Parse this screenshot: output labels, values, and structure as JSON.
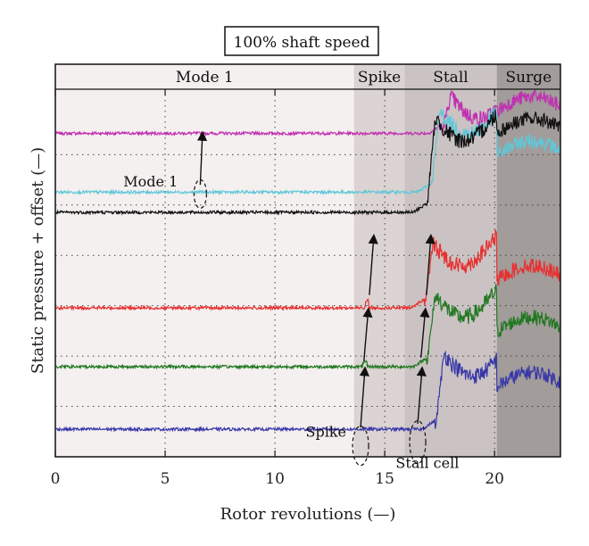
{
  "chart_data": {
    "type": "line",
    "title": "100% shaft speed",
    "xlabel": "Rotor revolutions (—)",
    "ylabel": "Static pressure + offset (—)",
    "xlim": [
      0,
      23
    ],
    "xticks": [
      0,
      5,
      10,
      15,
      20
    ],
    "grid": true,
    "regions": [
      {
        "label": "Mode 1",
        "x_start": 0,
        "x_end": 13.6,
        "color": "#f5f0f0"
      },
      {
        "label": "Spike",
        "x_start": 13.6,
        "x_end": 15.9,
        "color": "#dcd3d3"
      },
      {
        "label": "Stall",
        "x_start": 15.9,
        "x_end": 20.1,
        "color": "#cbc3c3"
      },
      {
        "label": "Surge",
        "x_start": 20.1,
        "x_end": 23,
        "color": "#a29c9a"
      }
    ],
    "series": [
      {
        "color": "#c030b0",
        "baseline": 0.88,
        "stall_onset": 17.6,
        "post_level": 0.98,
        "surge_level": 0.99
      },
      {
        "color": "#60c8d8",
        "baseline": 0.72,
        "stall_onset": 17.1,
        "post_level": 0.94,
        "surge_level": 0.87
      },
      {
        "color": "#111111",
        "baseline": 0.665,
        "stall_onset": 16.9,
        "post_level": 0.92,
        "surge_level": 0.93
      },
      {
        "color": "#e83030",
        "baseline": 0.405,
        "stall_onset": 16.8,
        "post_level": 0.58,
        "surge_level": 0.53
      },
      {
        "color": "#207820",
        "baseline": 0.245,
        "stall_onset": 16.9,
        "post_level": 0.44,
        "surge_level": 0.39
      },
      {
        "color": "#3838a8",
        "baseline": 0.075,
        "stall_onset": 17.3,
        "post_level": 0.28,
        "surge_level": 0.24
      }
    ],
    "annotations": [
      {
        "text": "Mode 1"
      },
      {
        "text": "Spike"
      },
      {
        "text": "Stall cell"
      }
    ]
  }
}
